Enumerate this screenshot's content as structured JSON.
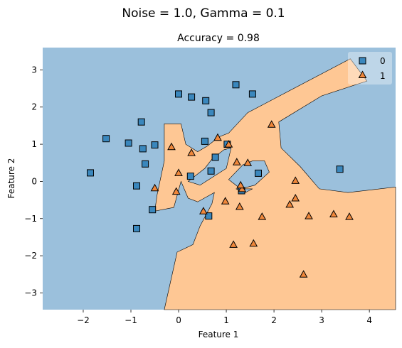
{
  "chart_data": {
    "type": "scatter",
    "suptitle": "Noise = 1.0, Gamma = 0.1",
    "title": "Accuracy = 0.98",
    "xlabel": "Feature 1",
    "ylabel": "Feature 2",
    "xlim": [
      -2.85,
      4.55
    ],
    "ylim": [
      -3.45,
      3.6
    ],
    "xticks": [
      -2,
      -1,
      0,
      1,
      2,
      3,
      4
    ],
    "yticks": [
      -3,
      -2,
      -1,
      0,
      1,
      2,
      3
    ],
    "grid": false,
    "legend": "top-right",
    "colors": {
      "class0_region": "#9bc0dc",
      "class1_region": "#fec794",
      "class0_marker": "#3a87bd",
      "class1_marker": "#f0873a",
      "marker_edge": "#000000"
    },
    "decision_region_class1": {
      "outer": [
        [
          -0.3,
          -3.45
        ],
        [
          -0.03,
          -1.9
        ],
        [
          0.3,
          -1.7
        ],
        [
          0.45,
          -1.2
        ],
        [
          0.7,
          -0.6
        ],
        [
          0.75,
          -0.3
        ],
        [
          0.4,
          -0.55
        ],
        [
          0.2,
          -0.45
        ],
        [
          0.05,
          0.0
        ],
        [
          -0.1,
          -0.7
        ],
        [
          -0.5,
          -0.8
        ],
        [
          -0.45,
          -0.35
        ],
        [
          -0.3,
          0.55
        ],
        [
          -0.3,
          1.55
        ],
        [
          0.05,
          1.55
        ],
        [
          0.15,
          1.0
        ],
        [
          0.4,
          0.8
        ],
        [
          0.6,
          0.95
        ],
        [
          0.85,
          1.2
        ],
        [
          1.05,
          1.3
        ],
        [
          1.45,
          1.85
        ],
        [
          3.6,
          3.3
        ],
        [
          3.95,
          2.7
        ],
        [
          3.0,
          2.3
        ],
        [
          2.1,
          1.6
        ],
        [
          2.15,
          0.9
        ],
        [
          2.55,
          0.4
        ],
        [
          2.95,
          -0.2
        ],
        [
          3.55,
          -0.3
        ],
        [
          4.55,
          -0.15
        ],
        [
          4.55,
          -3.45
        ]
      ],
      "holes": [
        [
          [
            0.2,
            0.0
          ],
          [
            0.55,
            0.35
          ],
          [
            0.7,
            0.6
          ],
          [
            0.95,
            0.85
          ],
          [
            1.1,
            0.9
          ],
          [
            1.0,
            0.35
          ],
          [
            0.45,
            -0.1
          ]
        ],
        [
          [
            1.05,
            0.05
          ],
          [
            1.35,
            0.45
          ],
          [
            1.55,
            0.55
          ],
          [
            1.8,
            0.55
          ],
          [
            1.9,
            0.25
          ],
          [
            1.6,
            -0.1
          ],
          [
            1.3,
            -0.2
          ]
        ],
        [
          [
            1.2,
            -0.2
          ],
          [
            1.55,
            -0.2
          ],
          [
            1.4,
            -0.3
          ]
        ]
      ]
    },
    "series": [
      {
        "name": "0",
        "marker": "square",
        "points": [
          [
            -1.85,
            0.23
          ],
          [
            -1.52,
            1.15
          ],
          [
            -1.05,
            1.03
          ],
          [
            -0.78,
            1.6
          ],
          [
            -0.75,
            0.88
          ],
          [
            -0.7,
            0.47
          ],
          [
            -0.5,
            0.98
          ],
          [
            -0.55,
            -0.76
          ],
          [
            -0.88,
            -0.12
          ],
          [
            -0.88,
            -1.27
          ],
          [
            0.0,
            2.35
          ],
          [
            0.27,
            2.27
          ],
          [
            0.57,
            2.17
          ],
          [
            0.68,
            1.85
          ],
          [
            0.55,
            1.08
          ],
          [
            0.25,
            0.14
          ],
          [
            0.68,
            0.28
          ],
          [
            0.77,
            0.65
          ],
          [
            0.63,
            -0.93
          ],
          [
            1.02,
            1.0
          ],
          [
            1.2,
            2.6
          ],
          [
            1.55,
            2.35
          ],
          [
            1.67,
            0.22
          ],
          [
            1.32,
            -0.25
          ],
          [
            3.38,
            0.33
          ]
        ]
      },
      {
        "name": "1",
        "marker": "triangle",
        "points": [
          [
            -0.15,
            0.93
          ],
          [
            -0.05,
            -0.27
          ],
          [
            0.0,
            0.23
          ],
          [
            0.27,
            0.77
          ],
          [
            -0.5,
            -0.18
          ],
          [
            0.52,
            -0.8
          ],
          [
            0.82,
            1.18
          ],
          [
            1.05,
            1.0
          ],
          [
            0.98,
            -0.53
          ],
          [
            1.22,
            0.52
          ],
          [
            1.28,
            -0.68
          ],
          [
            1.33,
            -0.2
          ],
          [
            1.45,
            0.5
          ],
          [
            1.15,
            -1.7
          ],
          [
            1.57,
            -1.67
          ],
          [
            1.75,
            -0.95
          ],
          [
            1.95,
            1.53
          ],
          [
            2.33,
            -0.62
          ],
          [
            2.45,
            0.02
          ],
          [
            2.45,
            -0.45
          ],
          [
            2.73,
            -0.93
          ],
          [
            2.62,
            -2.5
          ],
          [
            3.25,
            -0.88
          ],
          [
            3.58,
            -0.95
          ],
          [
            1.3,
            -0.1
          ]
        ]
      }
    ]
  }
}
